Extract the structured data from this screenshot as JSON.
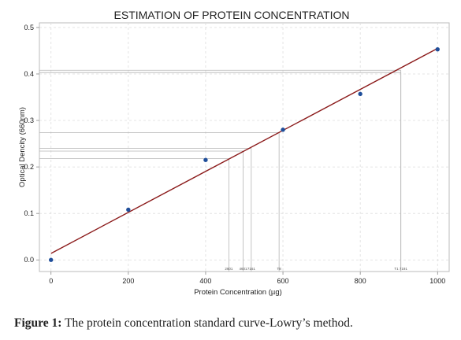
{
  "chart_data": {
    "type": "scatter",
    "title": "ESTIMATION OF PROTEIN CONCENTRATION",
    "xlabel": "Protein Concentration (µg)",
    "ylabel": "Optical Dencity (660nm)",
    "xlim": [
      -30,
      1030
    ],
    "ylim": [
      -0.025,
      0.51
    ],
    "x_ticks": [
      0,
      200,
      400,
      600,
      800,
      1000
    ],
    "x_tick_labels": [
      "0",
      "200",
      "400",
      "600",
      "800",
      "1000"
    ],
    "y_ticks": [
      0.0,
      0.1,
      0.2,
      0.3,
      0.4,
      0.5
    ],
    "y_tick_labels": [
      "0.0",
      "0.1",
      "0.2",
      "0.3",
      "0.4",
      "0.5"
    ],
    "grid": true,
    "point_color": "#1f4e9a",
    "line_color": "#8b1a1a",
    "points": [
      {
        "x": 0,
        "y": 0.0
      },
      {
        "x": 200,
        "y": 0.108
      },
      {
        "x": 400,
        "y": 0.215
      },
      {
        "x": 600,
        "y": 0.28
      },
      {
        "x": 800,
        "y": 0.357
      },
      {
        "x": 1000,
        "y": 0.453
      }
    ],
    "fit_line": {
      "x1": 0,
      "y1": 0.014,
      "x2": 1000,
      "y2": 0.455
    },
    "readings": [
      {
        "x": 460,
        "y": 0.218
      },
      {
        "x": 497,
        "y": 0.234
      },
      {
        "x": 518,
        "y": 0.24
      },
      {
        "x": 590,
        "y": 0.274
      },
      {
        "x": 905,
        "y": 0.408
      },
      {
        "x": 905,
        "y": 0.403
      }
    ],
    "annotations": [
      "2601",
      "4601",
      "7161",
      "T8",
      "T1 7191"
    ],
    "annotation_x": [
      460,
      497,
      518,
      590,
      905
    ]
  },
  "caption": {
    "label": "Figure 1:",
    "text": "The protein concentration standard curve-Lowry’s method."
  }
}
